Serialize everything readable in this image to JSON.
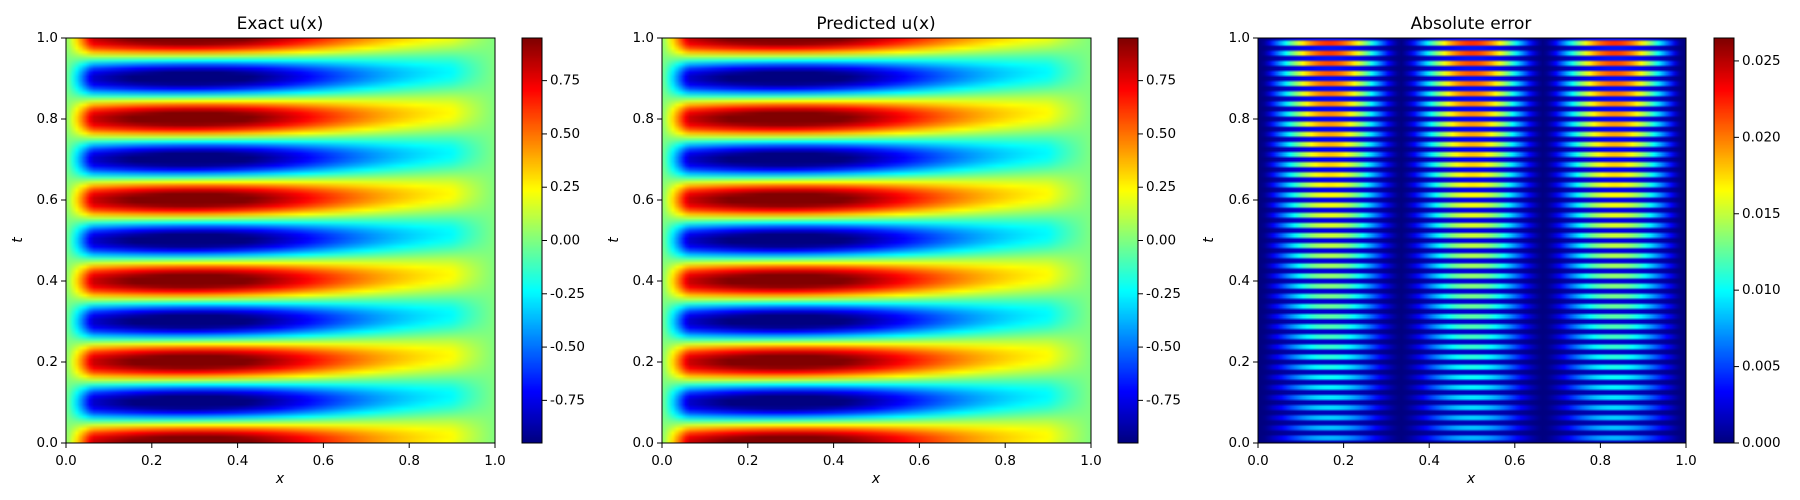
{
  "figure_layout": "three heatmap panels side by side, each with a vertical jet colorbar on its right",
  "chart_data": [
    {
      "type": "heatmap",
      "title": "Exact u(x)",
      "xlabel": "x",
      "ylabel": "t",
      "xlim": [
        0.0,
        1.0
      ],
      "ylim": [
        0.0,
        1.0
      ],
      "xticks": [
        "0.0",
        "0.2",
        "0.4",
        "0.6",
        "0.8",
        "1.0"
      ],
      "yticks": [
        "0.0",
        "0.2",
        "0.4",
        "0.6",
        "0.8",
        "1.0"
      ],
      "colormap": "jet",
      "value_range": [
        -0.95,
        0.95
      ],
      "colorbar_ticks": [
        "-0.75",
        "-0.50",
        "-0.25",
        "0.00",
        "0.25",
        "0.50",
        "0.75"
      ],
      "colorbar_tick_values": [
        -0.75,
        -0.5,
        -0.25,
        0.0,
        0.25,
        0.5,
        0.75
      ],
      "field": "standing/travelling wave: peaks (red, ~0.9) at t=0, 0.2, 0.4, 0.6, 0.8, 1.0 and troughs (blue, ~-0.9) at t=0.1, 0.3, 0.5, 0.7, 0.9; amplitude strongest near x=0.3 and decaying toward x=0 and x=1"
    },
    {
      "type": "heatmap",
      "title": "Predicted u(x)",
      "xlabel": "x",
      "ylabel": "t",
      "xlim": [
        0.0,
        1.0
      ],
      "ylim": [
        0.0,
        1.0
      ],
      "xticks": [
        "0.0",
        "0.2",
        "0.4",
        "0.6",
        "0.8",
        "1.0"
      ],
      "yticks": [
        "0.0",
        "0.2",
        "0.4",
        "0.6",
        "0.8",
        "1.0"
      ],
      "colormap": "jet",
      "value_range": [
        -0.95,
        0.95
      ],
      "colorbar_ticks": [
        "-0.75",
        "-0.50",
        "-0.25",
        "0.00",
        "0.25",
        "0.50",
        "0.75"
      ],
      "colorbar_tick_values": [
        -0.75,
        -0.5,
        -0.25,
        0.0,
        0.25,
        0.5,
        0.75
      ],
      "field": "visually identical to the exact solution"
    },
    {
      "type": "heatmap",
      "title": "Absolute error",
      "xlabel": "x",
      "ylabel": "t",
      "xlim": [
        0.0,
        1.0
      ],
      "ylim": [
        0.0,
        1.0
      ],
      "xticks": [
        "0.0",
        "0.2",
        "0.4",
        "0.6",
        "0.8",
        "1.0"
      ],
      "yticks": [
        "0.0",
        "0.2",
        "0.4",
        "0.6",
        "0.8",
        "1.0"
      ],
      "colormap": "jet",
      "value_range": [
        0.0,
        0.0265
      ],
      "colorbar_ticks": [
        "0.000",
        "0.005",
        "0.010",
        "0.015",
        "0.020",
        "0.025"
      ],
      "colorbar_tick_values": [
        0.0,
        0.005,
        0.01,
        0.015,
        0.02,
        0.025
      ],
      "field": "dense horizontal bands (about 40 across t) modulated by three lobes in x centred near x=0.17, 0.5, 0.83 with dark gaps near x=0.33 and x=0.67; error grows with t, maximum ~0.025 near t=0.8-1.0"
    }
  ]
}
